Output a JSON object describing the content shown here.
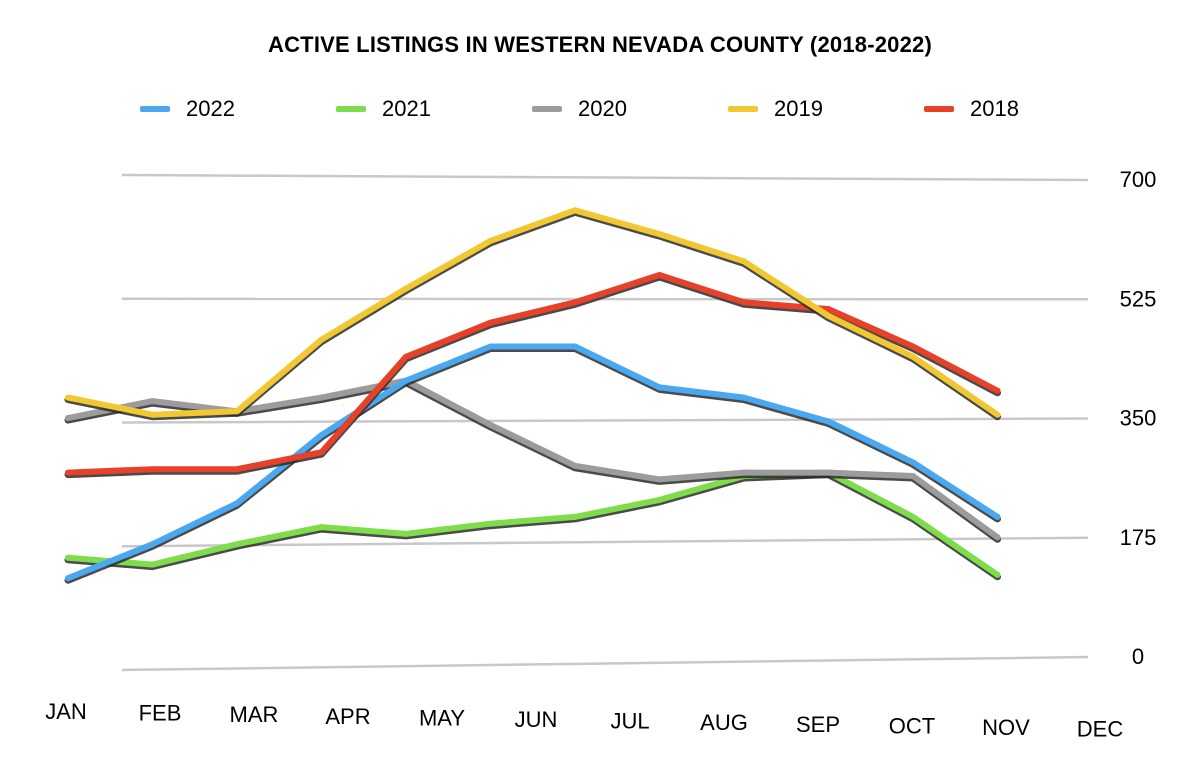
{
  "chart_data": {
    "type": "line",
    "title": "ACTIVE LISTINGS IN WESTERN NEVADA COUNTY (2018-2022)",
    "xlabel": "",
    "ylabel": "",
    "categories": [
      "JAN",
      "FEB",
      "MAR",
      "APR",
      "MAY",
      "JUN",
      "JUL",
      "AUG",
      "SEP",
      "OCT",
      "NOV",
      "DEC"
    ],
    "yticks": [
      "0",
      "175",
      "350",
      "525",
      "700"
    ],
    "ylim": [
      0,
      700
    ],
    "grid": true,
    "y_axis_side": "right",
    "legend_position": "top",
    "series": [
      {
        "name": "2022",
        "color": "#4aa8f0",
        "values": [
          120,
          170,
          230,
          330,
          410,
          460,
          460,
          400,
          385,
          350,
          290,
          210
        ]
      },
      {
        "name": "2021",
        "color": "#7fdc4a",
        "values": [
          150,
          140,
          170,
          195,
          185,
          200,
          210,
          235,
          270,
          275,
          210,
          125
        ]
      },
      {
        "name": "2020",
        "color": "#9c9c9c",
        "values": [
          355,
          380,
          365,
          385,
          410,
          345,
          285,
          265,
          275,
          275,
          270,
          180
        ]
      },
      {
        "name": "2019",
        "color": "#f2c832",
        "values": [
          385,
          360,
          365,
          470,
          545,
          615,
          660,
          625,
          585,
          505,
          445,
          360
        ]
      },
      {
        "name": "2018",
        "color": "#e8412a",
        "values": [
          275,
          280,
          280,
          305,
          445,
          495,
          525,
          565,
          525,
          515,
          460,
          395
        ]
      }
    ]
  }
}
